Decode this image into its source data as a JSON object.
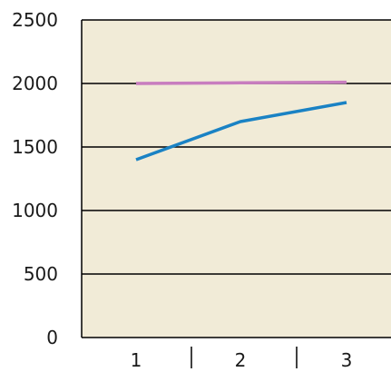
{
  "chart_data": {
    "type": "line",
    "title": "",
    "xlabel": "",
    "ylabel": "",
    "categories": [
      "1",
      "2",
      "3"
    ],
    "ylim": [
      0,
      2500
    ],
    "yticks": [
      0,
      500,
      1000,
      1500,
      2000,
      2500
    ],
    "y_tick_labels": [
      "0",
      "500",
      "1000",
      "1500",
      "2000",
      "2500"
    ],
    "x_tick_labels": [
      "1",
      "2",
      "3"
    ],
    "grid": true,
    "legend": "none",
    "series": [
      {
        "values": [
          1400,
          1700,
          1850
        ],
        "color": "#1a82c4"
      },
      {
        "values": [
          2000,
          2005,
          2010
        ],
        "color": "#c87dbf"
      }
    ],
    "colors": {
      "plot_background": "#f1ebd7",
      "gridline": "#000000"
    }
  }
}
